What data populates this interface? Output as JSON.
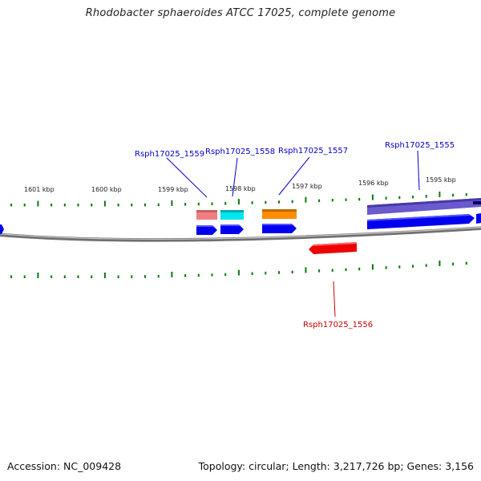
{
  "title": "Rhodobacter sphaeroides ATCC 17025, complete genome",
  "footer": {
    "accession": "Accession: NC_009428",
    "summary": "Topology: circular; Length: 3,217,726 bp; Genes: 3,156"
  },
  "kbp_ticks": [
    "1601 kbp",
    "1600 kbp",
    "1599 kbp",
    "1598 kbp",
    "1597 kbp",
    "1596 kbp",
    "1595 kbp"
  ],
  "genes": [
    {
      "name": "Rsph17025_1559",
      "strand": "+",
      "color": "#0000cc"
    },
    {
      "name": "Rsph17025_1558",
      "strand": "+",
      "color": "#0000cc"
    },
    {
      "name": "Rsph17025_1557",
      "strand": "+",
      "color": "#0000cc"
    },
    {
      "name": "Rsph17025_1556",
      "strand": "-",
      "color": "#cc0000"
    },
    {
      "name": "Rsph17025_1555",
      "strand": "+",
      "color": "#0000cc"
    }
  ],
  "colors": {
    "backbone": "#888888",
    "tick": "#0a7a0a",
    "cds_forward": "#0000ee",
    "cds_reverse": "#ee0000",
    "feature_1559": "#f08080",
    "feature_1558": "#00e5ee",
    "feature_1557": "#ff8c00",
    "feature_1555": "#6a5acd"
  }
}
